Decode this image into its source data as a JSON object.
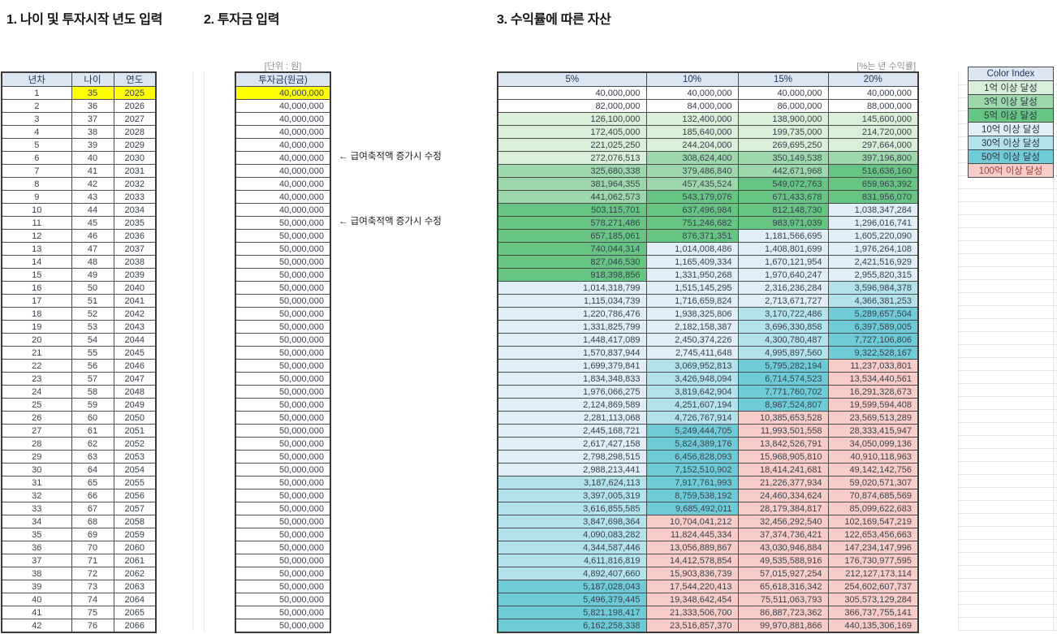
{
  "sections": {
    "age": {
      "title": "1. 나이 및 투자시작 년도 입력",
      "headers": [
        "년차",
        "나이",
        "연도"
      ],
      "highlight_color": "#ffff00",
      "rows": [
        [
          1,
          35,
          2025
        ],
        [
          2,
          36,
          2026
        ],
        [
          3,
          37,
          2027
        ],
        [
          4,
          38,
          2028
        ],
        [
          5,
          39,
          2029
        ],
        [
          6,
          40,
          2030
        ],
        [
          7,
          41,
          2031
        ],
        [
          8,
          42,
          2032
        ],
        [
          9,
          43,
          2033
        ],
        [
          10,
          44,
          2034
        ],
        [
          11,
          45,
          2035
        ],
        [
          12,
          46,
          2036
        ],
        [
          13,
          47,
          2037
        ],
        [
          14,
          48,
          2038
        ],
        [
          15,
          49,
          2039
        ],
        [
          16,
          50,
          2040
        ],
        [
          17,
          51,
          2041
        ],
        [
          18,
          52,
          2042
        ],
        [
          19,
          53,
          2043
        ],
        [
          20,
          54,
          2044
        ],
        [
          21,
          55,
          2045
        ],
        [
          22,
          56,
          2046
        ],
        [
          23,
          57,
          2047
        ],
        [
          24,
          58,
          2048
        ],
        [
          25,
          59,
          2049
        ],
        [
          26,
          60,
          2050
        ],
        [
          27,
          61,
          2051
        ],
        [
          28,
          62,
          2052
        ],
        [
          29,
          63,
          2053
        ],
        [
          30,
          64,
          2054
        ],
        [
          31,
          65,
          2055
        ],
        [
          32,
          66,
          2056
        ],
        [
          33,
          67,
          2057
        ],
        [
          34,
          68,
          2058
        ],
        [
          35,
          69,
          2059
        ],
        [
          36,
          70,
          2060
        ],
        [
          37,
          71,
          2061
        ],
        [
          38,
          72,
          2062
        ],
        [
          39,
          73,
          2063
        ],
        [
          40,
          74,
          2064
        ],
        [
          41,
          75,
          2065
        ],
        [
          42,
          76,
          2066
        ]
      ]
    },
    "invest": {
      "title": "2. 투자금 입력",
      "unit_label": "[단위 : 원]",
      "header": "투자금(원금)",
      "highlight_color": "#ffff00",
      "values": [
        40000000,
        40000000,
        40000000,
        40000000,
        40000000,
        40000000,
        40000000,
        40000000,
        40000000,
        40000000,
        50000000,
        50000000,
        50000000,
        50000000,
        50000000,
        50000000,
        50000000,
        50000000,
        50000000,
        50000000,
        50000000,
        50000000,
        50000000,
        50000000,
        50000000,
        50000000,
        50000000,
        50000000,
        50000000,
        50000000,
        50000000,
        50000000,
        50000000,
        50000000,
        50000000,
        50000000,
        50000000,
        50000000,
        50000000,
        50000000,
        50000000,
        50000000
      ],
      "annotations": [
        {
          "row": 6,
          "text": "← 급여축적액 증가시 수정"
        },
        {
          "row": 11,
          "text": "← 급여축적액 증가시 수정"
        }
      ]
    },
    "returns": {
      "title": "3. 수익률에 따른 자산",
      "note": "[%는 년 수익률]",
      "headers": [
        "5%",
        "10%",
        "15%",
        "20%"
      ],
      "rows": [
        [
          40000000,
          40000000,
          40000000,
          40000000
        ],
        [
          82000000,
          84000000,
          86000000,
          88000000
        ],
        [
          126100000,
          132400000,
          138900000,
          145600000
        ],
        [
          172405000,
          185640000,
          199735000,
          214720000
        ],
        [
          221025250,
          244204000,
          269695250,
          297664000
        ],
        [
          272076513,
          308624400,
          350149538,
          397196800
        ],
        [
          325680338,
          379486840,
          442671968,
          516636160
        ],
        [
          381964355,
          457435524,
          549072763,
          659963392
        ],
        [
          441062573,
          543179076,
          671433678,
          831956070
        ],
        [
          503115701,
          637496984,
          812148730,
          1038347284
        ],
        [
          578271486,
          751246682,
          983971039,
          1296016741
        ],
        [
          657185061,
          876371351,
          1181566695,
          1605220090
        ],
        [
          740044314,
          1014008486,
          1408801699,
          1976264108
        ],
        [
          827046530,
          1165409334,
          1670121954,
          2421516929
        ],
        [
          918398856,
          1331950268,
          1970640247,
          2955820315
        ],
        [
          1014318799,
          1515145295,
          2316236284,
          3596984378
        ],
        [
          1115034739,
          1716659824,
          2713671727,
          4366381253
        ],
        [
          1220786476,
          1938325806,
          3170722486,
          5289657504
        ],
        [
          1331825799,
          2182158387,
          3696330858,
          6397589005
        ],
        [
          1448417089,
          2450374226,
          4300780487,
          7727106806
        ],
        [
          1570837944,
          2745411648,
          4995897560,
          9322528167
        ],
        [
          1699379841,
          3069952813,
          5795282194,
          11237033801
        ],
        [
          1834348833,
          3426948094,
          6714574523,
          13534440561
        ],
        [
          1976066275,
          3819642904,
          7771760702,
          16291328673
        ],
        [
          2124869589,
          4251607194,
          8987524807,
          19599594408
        ],
        [
          2281113068,
          4726767914,
          10385653528,
          23569513289
        ],
        [
          2445168721,
          5249444705,
          11993501558,
          28333415947
        ],
        [
          2617427158,
          5824389176,
          13842526791,
          34050099136
        ],
        [
          2798298515,
          6456828093,
          15968905810,
          40910118963
        ],
        [
          2988213441,
          7152510902,
          18414241681,
          49142142756
        ],
        [
          3187624113,
          7917761993,
          21226377934,
          59020571307
        ],
        [
          3397005319,
          8759538192,
          24460334624,
          70874685569
        ],
        [
          3616855585,
          9685492011,
          28179384817,
          85099622683
        ],
        [
          3847698364,
          10704041212,
          32456292540,
          102169547219
        ],
        [
          4090083282,
          11824445334,
          37374736421,
          122653456663
        ],
        [
          4344587446,
          13056889867,
          43030946884,
          147234147996
        ],
        [
          4611816819,
          14412578854,
          49535588916,
          176730977595
        ],
        [
          4892407660,
          15903836739,
          57015927254,
          212127173114
        ],
        [
          5187028043,
          17544220413,
          65618316342,
          254602607737
        ],
        [
          5496379445,
          19348642454,
          75511063793,
          305573129284
        ],
        [
          5821198417,
          21333506700,
          86887723362,
          366737755141
        ],
        [
          6162258338,
          23516857370,
          99970881866,
          440135306169
        ]
      ]
    }
  },
  "legend": {
    "title": "Color Index",
    "items": [
      {
        "label": "1억 이상 달성",
        "min": 100000000,
        "color": "#d8efd8"
      },
      {
        "label": "3억 이상 달성",
        "min": 300000000,
        "color": "#9ed8aa"
      },
      {
        "label": "5억 이상 달성",
        "min": 500000000,
        "color": "#66c583"
      },
      {
        "label": "10억 이상 달성",
        "min": 1000000000,
        "color": "#dfeef7"
      },
      {
        "label": "30억 이상 달성",
        "min": 3000000000,
        "color": "#b4e2ea"
      },
      {
        "label": "50억 이상 달성",
        "min": 5000000000,
        "color": "#6fccd6"
      },
      {
        "label": "100억 이상 달성",
        "min": 10000000000,
        "color": "#f8cdc7",
        "label_color": "#9c4038"
      }
    ]
  },
  "theme": {
    "header_bg": "#dce6f2",
    "input_highlight": "#ffff00",
    "header_text": "#20355a",
    "cell_default_bg": "#ffffff"
  }
}
